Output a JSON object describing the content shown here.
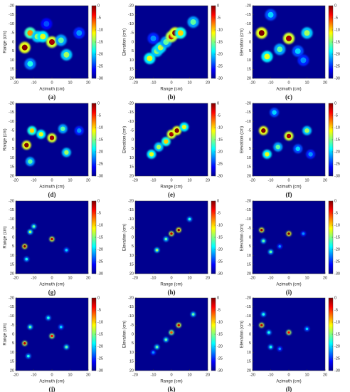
{
  "chart_data": [
    {
      "type": "heatmap",
      "caption": "(a)",
      "xlabel": "Azimuth (cm)",
      "ylabel": "Range (cm)",
      "xlim": [
        -20,
        20
      ],
      "ylim": [
        -20,
        20
      ],
      "y_inverted": true,
      "xticks": [
        -20,
        -10,
        0,
        10,
        20
      ],
      "yticks": [
        -20,
        -15,
        -10,
        -5,
        0,
        5,
        10,
        15,
        20
      ],
      "clim": [
        -30,
        0
      ],
      "cticks": [
        0,
        -5,
        -10,
        -15,
        -20,
        -25,
        -30
      ],
      "x": [
        -15,
        -12,
        -8,
        -5,
        0,
        5,
        8,
        -12,
        15,
        -3
      ],
      "y": [
        3,
        -5,
        -3,
        -3,
        0,
        -1,
        7,
        12,
        -5,
        -10
      ],
      "values": [
        0,
        -8,
        -14,
        -12,
        -1,
        -16,
        -14,
        -18,
        -22,
        -24
      ]
    },
    {
      "type": "heatmap",
      "caption": "(b)",
      "xlabel": "Range (cm)",
      "ylabel": "Elevation (cm)",
      "xlim": [
        -20,
        20
      ],
      "ylim": [
        -20,
        20
      ],
      "y_inverted": true,
      "xticks": [
        -20,
        -10,
        0,
        10,
        20
      ],
      "yticks": [
        -20,
        -15,
        -10,
        -5,
        0,
        5,
        10,
        15,
        20
      ],
      "clim": [
        -30,
        0
      ],
      "cticks": [
        0,
        -5,
        -10,
        -15,
        -20,
        -25,
        -30
      ],
      "x": [
        -12,
        -8,
        -6,
        -3,
        0,
        2,
        5,
        12,
        -10
      ],
      "y": [
        9,
        5,
        3,
        0,
        -3,
        -5,
        -5,
        -11,
        -2
      ],
      "values": [
        -12,
        -14,
        -13,
        -16,
        -2,
        0,
        -10,
        -16,
        -22
      ]
    },
    {
      "type": "heatmap",
      "caption": "(c)",
      "xlabel": "Azimuth (cm)",
      "ylabel": "Elevation (cm)",
      "xlim": [
        -20,
        20
      ],
      "ylim": [
        -20,
        20
      ],
      "y_inverted": true,
      "xticks": [
        -20,
        -10,
        0,
        10,
        20
      ],
      "yticks": [
        -20,
        -15,
        -10,
        -5,
        0,
        5,
        10,
        15,
        20
      ],
      "clim": [
        -30,
        0
      ],
      "cticks": [
        0,
        -5,
        -10,
        -15,
        -20,
        -25,
        -30
      ],
      "x": [
        -15,
        0,
        -12,
        -5,
        10,
        -10,
        5,
        8
      ],
      "y": [
        -5,
        -2,
        8,
        4,
        -5,
        -15,
        5,
        10
      ],
      "values": [
        0,
        -1,
        -12,
        -16,
        -14,
        -20,
        -20,
        -22
      ]
    },
    {
      "type": "heatmap",
      "caption": "(d)",
      "xlabel": "Azimuth (cm)",
      "ylabel": "Range (cm)",
      "xlim": [
        -20,
        20
      ],
      "ylim": [
        -20,
        20
      ],
      "y_inverted": true,
      "xticks": [
        -20,
        -10,
        0,
        10,
        20
      ],
      "yticks": [
        -20,
        -15,
        -10,
        -5,
        0,
        5,
        10,
        15,
        20
      ],
      "clim": [
        -30,
        0
      ],
      "cticks": [
        0,
        -5,
        -10,
        -15,
        -20,
        -25,
        -30
      ],
      "x": [
        -14,
        -11,
        -6,
        0,
        6,
        8,
        -12,
        15
      ],
      "y": [
        3,
        -5,
        -3,
        -1,
        -6,
        7,
        12,
        -5
      ],
      "values": [
        0,
        -10,
        -12,
        -1,
        -16,
        -14,
        -16,
        -22
      ]
    },
    {
      "type": "heatmap",
      "caption": "(e)",
      "xlabel": "Range (cm)",
      "ylabel": "Elevation (cm)",
      "xlim": [
        -20,
        20
      ],
      "ylim": [
        -20,
        20
      ],
      "y_inverted": true,
      "xticks": [
        -20,
        -10,
        0,
        10,
        20
      ],
      "yticks": [
        -20,
        -15,
        -10,
        -5,
        0,
        5,
        10,
        15,
        20
      ],
      "clim": [
        -30,
        0
      ],
      "cticks": [
        0,
        -5,
        -10,
        -15,
        -20,
        -25,
        -30
      ],
      "x": [
        -11,
        -7,
        -3,
        0,
        3,
        7
      ],
      "y": [
        8,
        4,
        1,
        -3,
        -5,
        -7
      ],
      "values": [
        -12,
        -14,
        -10,
        -1,
        0,
        -12
      ]
    },
    {
      "type": "heatmap",
      "caption": "(f)",
      "xlabel": "Azimuth (cm)",
      "ylabel": "Elevation (cm)",
      "xlim": [
        -20,
        20
      ],
      "ylim": [
        -20,
        20
      ],
      "y_inverted": true,
      "xticks": [
        -20,
        -10,
        0,
        10,
        20
      ],
      "yticks": [
        -20,
        -15,
        -10,
        -5,
        0,
        5,
        10,
        15,
        20
      ],
      "clim": [
        -30,
        0
      ],
      "cticks": [
        0,
        -5,
        -10,
        -15,
        -20,
        -25,
        -30
      ],
      "x": [
        -14,
        0,
        -12,
        -6,
        10,
        -8,
        5,
        12
      ],
      "y": [
        -5,
        -2,
        8,
        4,
        -5,
        -15,
        5,
        8
      ],
      "values": [
        0,
        -1,
        -12,
        -16,
        -14,
        -20,
        -20,
        -22
      ]
    },
    {
      "type": "heatmap",
      "caption": "(g)",
      "xlabel": "Azimuth (cm)",
      "ylabel": "Range (cm)",
      "xlim": [
        -20,
        20
      ],
      "ylim": [
        -20,
        20
      ],
      "y_inverted": true,
      "xticks": [
        -20,
        -10,
        0,
        10,
        20
      ],
      "yticks": [
        -20,
        -15,
        -10,
        -5,
        0,
        5,
        10,
        15,
        20
      ],
      "clim": [
        -30,
        0
      ],
      "cticks": [
        0,
        -5,
        -10,
        -15,
        -20,
        -25,
        -30
      ],
      "x": [
        -15,
        0,
        -12,
        -10,
        8,
        -14
      ],
      "y": [
        5,
        1,
        -3,
        -6,
        7,
        12
      ],
      "values": [
        0,
        -2,
        -14,
        -16,
        -20,
        -18
      ]
    },
    {
      "type": "heatmap",
      "caption": "(h)",
      "xlabel": "Range (cm)",
      "ylabel": "Elevation (cm)",
      "xlim": [
        -20,
        20
      ],
      "ylim": [
        -20,
        20
      ],
      "y_inverted": true,
      "xticks": [
        -20,
        -10,
        0,
        10,
        20
      ],
      "yticks": [
        -20,
        -15,
        -10,
        -5,
        0,
        5,
        10,
        15,
        20
      ],
      "clim": [
        -30,
        0
      ],
      "cticks": [
        0,
        -5,
        -10,
        -15,
        -20,
        -25,
        -30
      ],
      "x": [
        -8,
        -3,
        0,
        4,
        10
      ],
      "y": [
        7,
        1,
        -2,
        -4,
        -10
      ],
      "values": [
        -14,
        -16,
        -2,
        0,
        -18
      ]
    },
    {
      "type": "heatmap",
      "caption": "(i)",
      "xlabel": "Azimuth (cm)",
      "ylabel": "Elevation (cm)",
      "xlim": [
        -20,
        20
      ],
      "ylim": [
        -20,
        20
      ],
      "y_inverted": true,
      "xticks": [
        -20,
        -10,
        0,
        10,
        20
      ],
      "yticks": [
        -20,
        -15,
        -10,
        -5,
        0,
        5,
        10,
        15,
        20
      ],
      "clim": [
        -30,
        0
      ],
      "cticks": [
        0,
        -5,
        -10,
        -15,
        -20,
        -25,
        -30
      ],
      "x": [
        -15,
        0,
        -14,
        -10,
        -5,
        8
      ],
      "y": [
        -4,
        -2,
        2,
        8,
        5,
        -2
      ],
      "values": [
        -1,
        0,
        -16,
        -16,
        -22,
        -22
      ]
    },
    {
      "type": "heatmap",
      "caption": "(j)",
      "xlabel": "Azimuth (cm)",
      "ylabel": "Range (cm)",
      "xlim": [
        -20,
        20
      ],
      "ylim": [
        -20,
        20
      ],
      "y_inverted": true,
      "xticks": [
        -20,
        -10,
        0,
        10,
        20
      ],
      "yticks": [
        -20,
        -15,
        -10,
        -5,
        0,
        5,
        10,
        15,
        20
      ],
      "clim": [
        -30,
        0
      ],
      "cticks": [
        0,
        -5,
        -10,
        -15,
        -20,
        -25,
        -30
      ],
      "x": [
        -15,
        0,
        -12,
        -2,
        8,
        5,
        -13
      ],
      "y": [
        5,
        1,
        -4,
        -9,
        7,
        -4,
        12
      ],
      "values": [
        -2,
        -4,
        -16,
        -18,
        -16,
        -20,
        -18
      ]
    },
    {
      "type": "heatmap",
      "caption": "(k)",
      "xlabel": "Range (cm)",
      "ylabel": "Elevation (cm)",
      "xlim": [
        -20,
        20
      ],
      "ylim": [
        -20,
        20
      ],
      "y_inverted": true,
      "xticks": [
        -20,
        -10,
        0,
        10,
        20
      ],
      "yticks": [
        -20,
        -15,
        -10,
        -5,
        0,
        5,
        10,
        15,
        20
      ],
      "clim": [
        -30,
        0
      ],
      "cticks": [
        0,
        -5,
        -10,
        -15,
        -20,
        -25,
        -30
      ],
      "x": [
        -8,
        -3,
        0,
        4,
        12,
        -10
      ],
      "y": [
        7,
        3,
        -1,
        -5,
        -11,
        10
      ],
      "values": [
        -16,
        -16,
        -6,
        -2,
        -16,
        -22
      ]
    },
    {
      "type": "heatmap",
      "caption": "(l)",
      "xlabel": "Azimuth (cm)",
      "ylabel": "Elevation (cm)",
      "xlim": [
        -20,
        20
      ],
      "ylim": [
        -20,
        20
      ],
      "y_inverted": true,
      "xticks": [
        -20,
        -10,
        0,
        10,
        20
      ],
      "yticks": [
        -20,
        -15,
        -10,
        -5,
        0,
        5,
        10,
        15,
        20
      ],
      "clim": [
        -30,
        0
      ],
      "cticks": [
        0,
        -5,
        -10,
        -15,
        -20,
        -25,
        -30
      ],
      "x": [
        -15,
        0,
        -14,
        -11,
        -5,
        10,
        -10
      ],
      "y": [
        -5,
        -1,
        -11,
        -1,
        8,
        -3,
        7
      ],
      "values": [
        -2,
        -4,
        -18,
        -18,
        -22,
        -20,
        -18
      ]
    }
  ]
}
